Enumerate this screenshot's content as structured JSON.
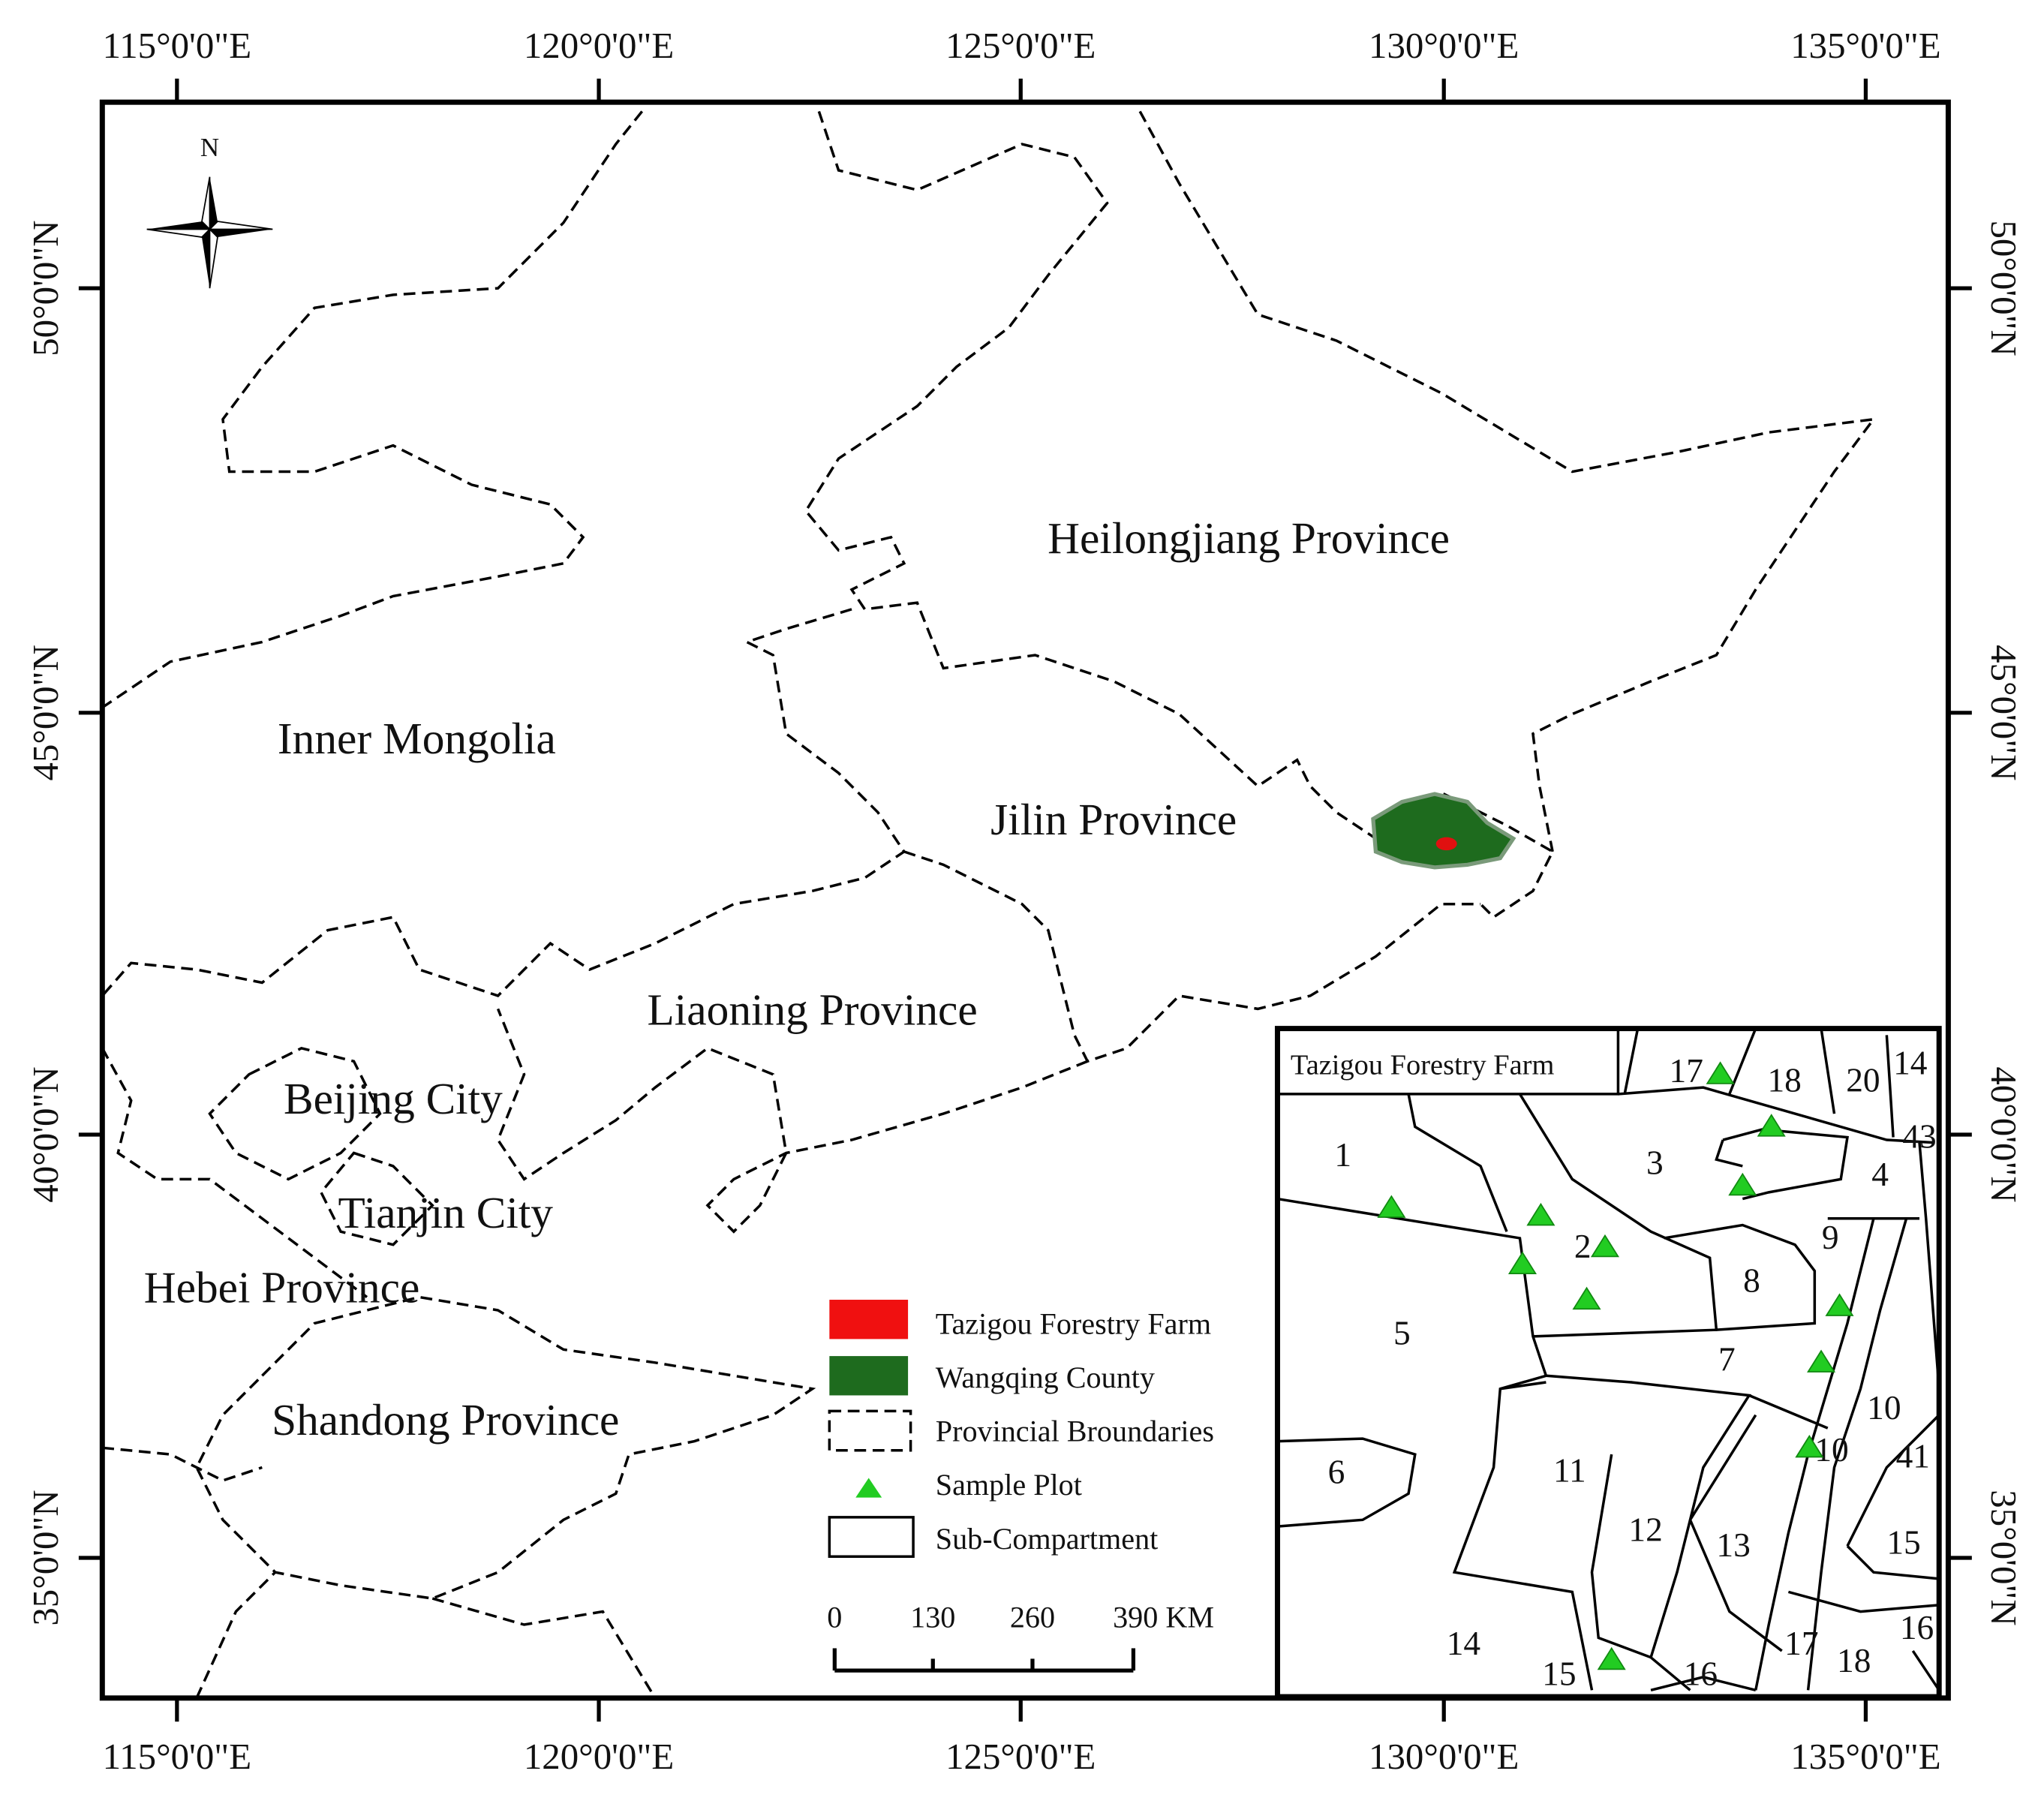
{
  "lon_labels_top": [
    "115°0'0\"E",
    "120°0'0\"E",
    "125°0'0\"E",
    "130°0'0\"E",
    "135°0'0\"E"
  ],
  "lon_labels_bottom": [
    "115°0'0\"E",
    "120°0'0\"E",
    "125°0'0\"E",
    "130°0'0\"E",
    "135°0'0\"E"
  ],
  "lat_labels_left": [
    "50°0'0\"N",
    "45°0'0\"N",
    "40°0'0\"N",
    "35°0'0\"N"
  ],
  "lat_labels_right": [
    "50°0'0\"N",
    "45°0'0\"N",
    "40°0'0\"N",
    "35°0'0\"N"
  ],
  "compass": "N",
  "provinces": [
    "Heilongjiang Province",
    "Inner Mongolia",
    "Jilin Province",
    "Liaoning Province",
    "Beijing City",
    "Tianjin City",
    "Hebei Province",
    "Shandong Province"
  ],
  "legend": {
    "items": [
      "Tazigou Forestry Farm",
      "Wangqing County",
      "Provincial Broundaries",
      "Sample Plot",
      "Sub-Compartment"
    ]
  },
  "scale_bar": {
    "labels": [
      "0",
      "130",
      "260",
      "390 KM"
    ]
  },
  "inset": {
    "title": "Tazigou Forestry Farm",
    "labels": [
      "1",
      "3",
      "17",
      "18",
      "20",
      "14",
      "43",
      "4",
      "9",
      "2",
      "8",
      "5",
      "7",
      "10",
      "10",
      "41",
      "6",
      "11",
      "12",
      "13",
      "15",
      "16",
      "14",
      "15",
      "16",
      "17",
      "18"
    ]
  }
}
